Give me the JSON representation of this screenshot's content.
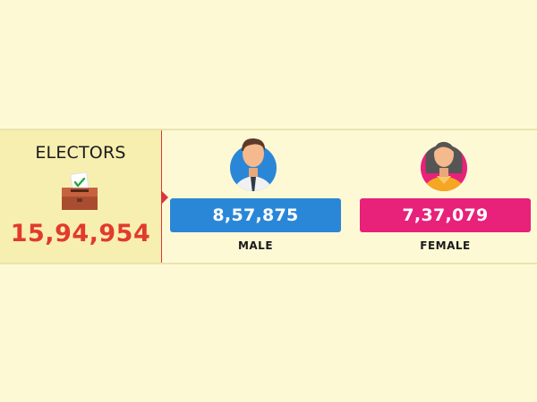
{
  "electors": {
    "title": "ELECTORS",
    "total": "15,94,954",
    "icon": "ballot-box-icon"
  },
  "male": {
    "count": "8,57,875",
    "label": "MALE",
    "color": "#2a87d8",
    "icon": "male-avatar-icon"
  },
  "female": {
    "count": "7,37,079",
    "label": "FEMALE",
    "color": "#e8217a",
    "icon": "female-avatar-icon"
  },
  "colors": {
    "background": "#fef9d5",
    "panel": "#f7efb0",
    "total_text": "#e23a2c"
  }
}
